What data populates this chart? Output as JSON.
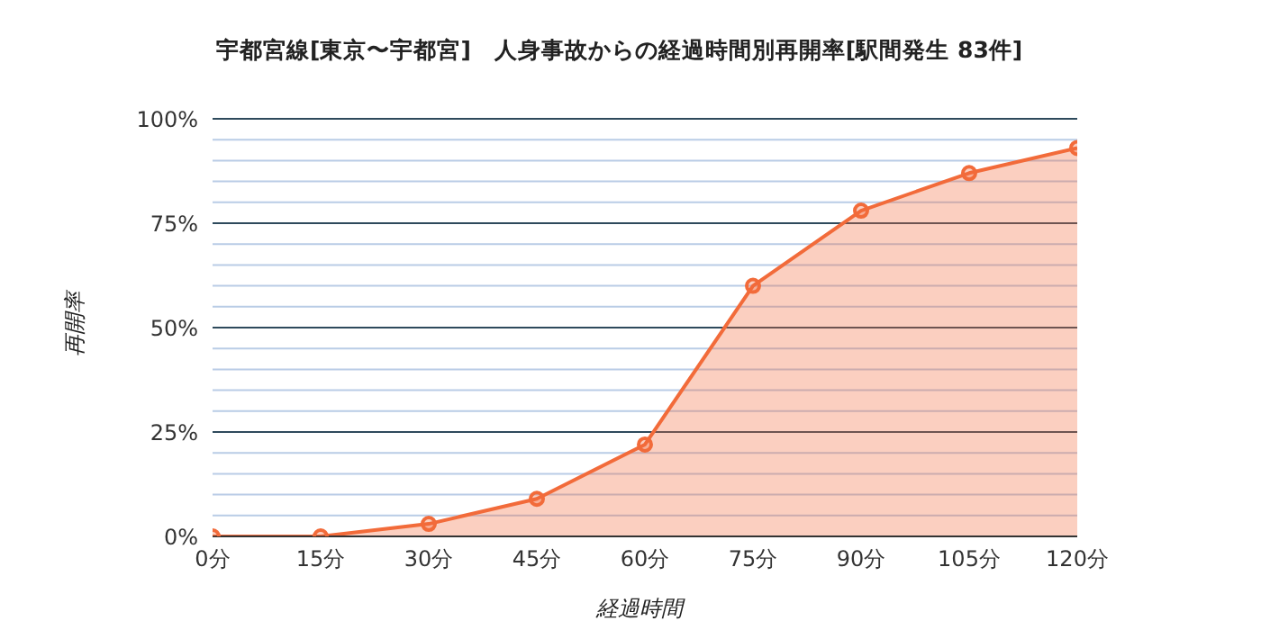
{
  "chart_data": {
    "type": "area",
    "title": "宇都宮線[東京〜宇都宮]　人身事故からの経過時間別再開率[駅間発生 83件]",
    "xlabel": "経過時間",
    "ylabel": "再開率",
    "categories": [
      "0分",
      "15分",
      "30分",
      "45分",
      "60分",
      "75分",
      "90分",
      "105分",
      "120分"
    ],
    "series": [
      {
        "color": "#f26b3a",
        "values": [
          0,
          0,
          3,
          9,
          22,
          60,
          78,
          87,
          93
        ]
      }
    ],
    "ylim": [
      0,
      100
    ],
    "yticks": [
      {
        "value": 0,
        "label": "0%"
      },
      {
        "value": 5,
        "label": null
      },
      {
        "value": 10,
        "label": null
      },
      {
        "value": 15,
        "label": null
      },
      {
        "value": 20,
        "label": null
      },
      {
        "value": 25,
        "label": "25%"
      },
      {
        "value": 30,
        "label": null
      },
      {
        "value": 35,
        "label": null
      },
      {
        "value": 40,
        "label": null
      },
      {
        "value": 45,
        "label": null
      },
      {
        "value": 50,
        "label": "50%"
      },
      {
        "value": 55,
        "label": null
      },
      {
        "value": 60,
        "label": null
      },
      {
        "value": 65,
        "label": null
      },
      {
        "value": 70,
        "label": null
      },
      {
        "value": 75,
        "label": "75%"
      },
      {
        "value": 80,
        "label": null
      },
      {
        "value": 85,
        "label": null
      },
      {
        "value": 90,
        "label": null
      },
      {
        "value": 95,
        "label": null
      },
      {
        "value": 100,
        "label": "100%"
      }
    ],
    "grid": "y",
    "marker": "circle",
    "legend": false
  }
}
